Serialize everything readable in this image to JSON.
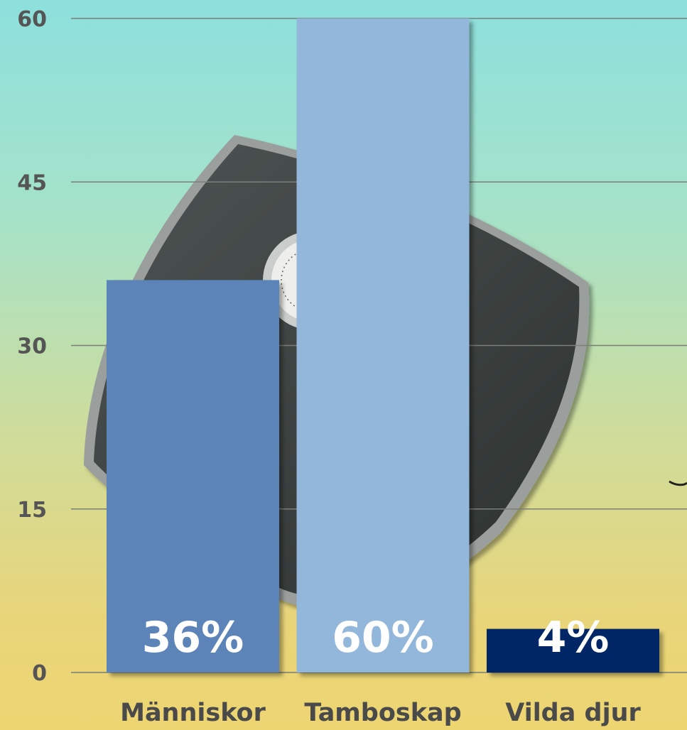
{
  "chart_data": {
    "type": "bar",
    "categories": [
      "Människor",
      "Tamboskap",
      "Vilda djur"
    ],
    "values": [
      36,
      60,
      4
    ],
    "data_labels": [
      "36%",
      "60%",
      "4%"
    ],
    "bar_colors": [
      "#5b84b8",
      "#93b7db",
      "#032865"
    ],
    "yticks": [
      "0",
      "15",
      "30",
      "45",
      "60"
    ],
    "ytick_values": [
      0,
      15,
      30,
      45,
      60
    ],
    "ylim": [
      0,
      60
    ],
    "grid": true,
    "background_image": "bathroom-scale"
  }
}
